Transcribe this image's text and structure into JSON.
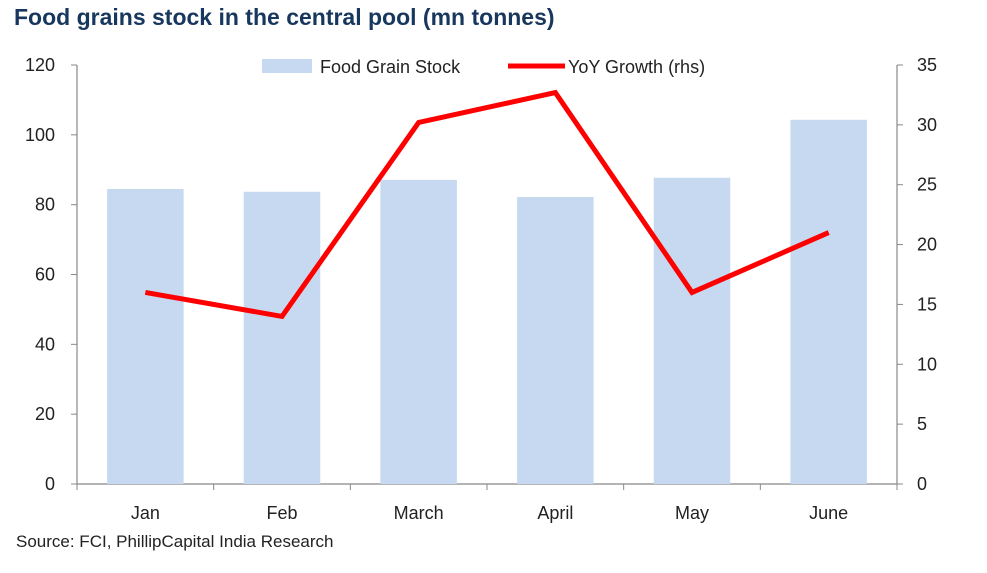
{
  "chart_data": {
    "type": "bar",
    "title": "Food grains stock in the central pool (mn tonnes)",
    "source": "Source: FCI, PhillipCapital India Research",
    "categories": [
      "Jan",
      "Feb",
      "March",
      "April",
      "May",
      "June"
    ],
    "series": [
      {
        "name": "Food Grain Stock",
        "type": "bar",
        "axis": "left",
        "color": "#c6d9f0",
        "values": [
          84.5,
          83.7,
          87.1,
          82.2,
          87.7,
          104.3
        ]
      },
      {
        "name": "YoY Growth (rhs)",
        "type": "line",
        "axis": "right",
        "color": "#ff0000",
        "values": [
          16.0,
          14.0,
          30.2,
          32.7,
          16.0,
          21.0
        ]
      }
    ],
    "ylim_left": [
      0,
      120
    ],
    "yticks_left": [
      0,
      20,
      40,
      60,
      80,
      100,
      120
    ],
    "ylim_right": [
      0,
      35
    ],
    "yticks_right": [
      0,
      5,
      10,
      15,
      20,
      25,
      30,
      35
    ],
    "legend": "top-center",
    "grid": false
  }
}
